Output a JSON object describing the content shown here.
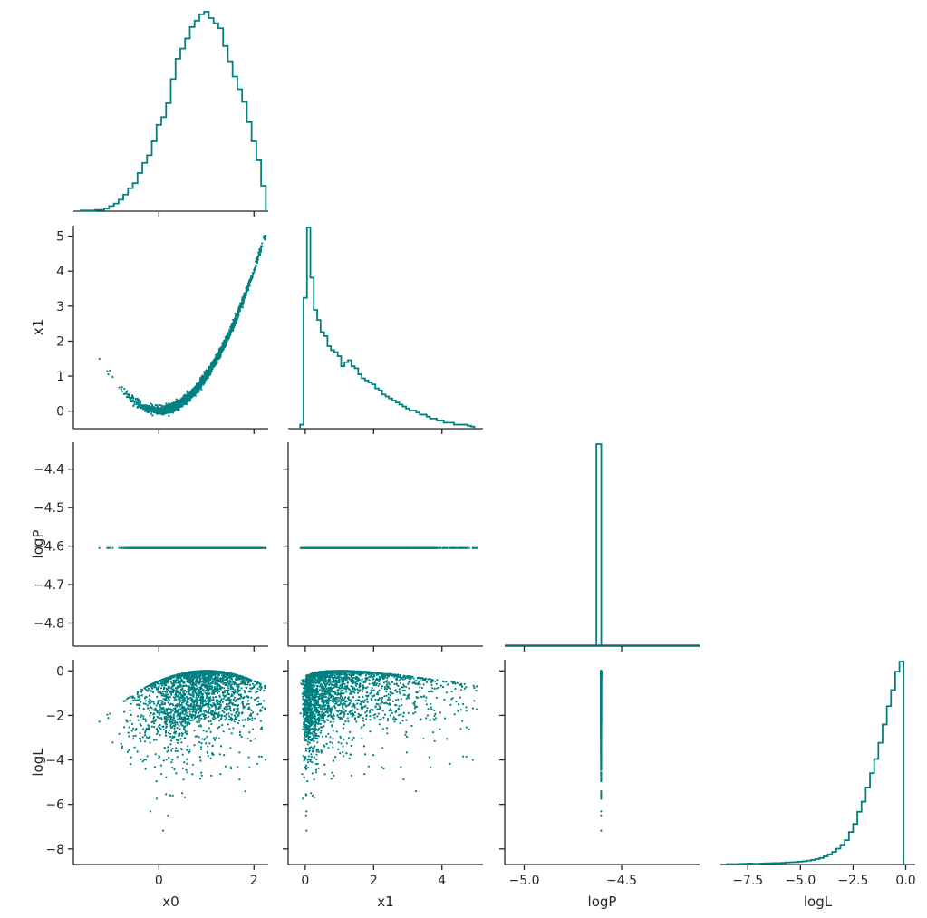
{
  "chart_data": {
    "type": "corner-plot",
    "color": "#008080",
    "variables": [
      "x0",
      "x1",
      "logP",
      "logL"
    ],
    "panels": [
      {
        "type": "histogram-step",
        "row": 0,
        "col": 0,
        "x_var": "x0",
        "xlim": [
          -1.8,
          2.3
        ],
        "x_ticks": [
          0,
          2
        ],
        "x_tick_labels": [],
        "bins": [
          [
            -1.6,
            0.005
          ],
          [
            -1.5,
            0.005
          ],
          [
            -1.4,
            0.005
          ],
          [
            -1.3,
            0.01
          ],
          [
            -1.2,
            0.01
          ],
          [
            -1.1,
            0.02
          ],
          [
            -1.0,
            0.04
          ],
          [
            -0.9,
            0.06
          ],
          [
            -0.8,
            0.09
          ],
          [
            -0.7,
            0.13
          ],
          [
            -0.6,
            0.18
          ],
          [
            -0.5,
            0.22
          ],
          [
            -0.4,
            0.3
          ],
          [
            -0.3,
            0.38
          ],
          [
            -0.2,
            0.44
          ],
          [
            -0.1,
            0.55
          ],
          [
            0.0,
            0.68
          ],
          [
            0.1,
            0.74
          ],
          [
            0.2,
            0.85
          ],
          [
            0.3,
            1.04
          ],
          [
            0.4,
            1.2
          ],
          [
            0.5,
            1.28
          ],
          [
            0.6,
            1.36
          ],
          [
            0.7,
            1.45
          ],
          [
            0.8,
            1.5
          ],
          [
            0.9,
            1.55
          ],
          [
            1.0,
            1.57
          ],
          [
            1.1,
            1.52
          ],
          [
            1.2,
            1.48
          ],
          [
            1.3,
            1.44
          ],
          [
            1.4,
            1.3
          ],
          [
            1.5,
            1.18
          ],
          [
            1.6,
            1.06
          ],
          [
            1.7,
            0.96
          ],
          [
            1.8,
            0.86
          ],
          [
            1.9,
            0.7
          ],
          [
            2.0,
            0.55
          ],
          [
            2.1,
            0.4
          ],
          [
            2.2,
            0.2
          ]
        ]
      },
      {
        "type": "scatter",
        "row": 1,
        "col": 0,
        "x_var": "x0",
        "y_var": "x1",
        "xlim": [
          -1.8,
          2.3
        ],
        "ylim": [
          -0.5,
          5.3
        ],
        "y_ticks": [
          0,
          1,
          2,
          3,
          4,
          5
        ],
        "y_tick_labels": [
          "0",
          "1",
          "2",
          "3",
          "4",
          "5"
        ],
        "x_ticks": [
          0,
          2
        ],
        "x_tick_labels": [],
        "ylabel": "x1",
        "relation": "x1 = x0^2 + noise",
        "x_range": [
          -1.55,
          2.25
        ]
      },
      {
        "type": "histogram-step",
        "row": 1,
        "col": 1,
        "x_var": "x1",
        "xlim": [
          -0.5,
          5.2
        ],
        "x_ticks": [
          0,
          2,
          4
        ],
        "x_tick_labels": [],
        "bins": [
          [
            -0.1,
            0.02
          ],
          [
            0.0,
            0.65
          ],
          [
            0.1,
            1.0
          ],
          [
            0.2,
            0.75
          ],
          [
            0.3,
            0.59
          ],
          [
            0.4,
            0.54
          ],
          [
            0.5,
            0.48
          ],
          [
            0.6,
            0.46
          ],
          [
            0.7,
            0.41
          ],
          [
            0.8,
            0.39
          ],
          [
            0.9,
            0.38
          ],
          [
            1.0,
            0.36
          ],
          [
            1.1,
            0.31
          ],
          [
            1.2,
            0.33
          ],
          [
            1.3,
            0.34
          ],
          [
            1.4,
            0.31
          ],
          [
            1.5,
            0.3
          ],
          [
            1.6,
            0.27
          ],
          [
            1.7,
            0.25
          ],
          [
            1.8,
            0.24
          ],
          [
            1.9,
            0.23
          ],
          [
            2.0,
            0.22
          ],
          [
            2.1,
            0.2
          ],
          [
            2.2,
            0.19
          ],
          [
            2.3,
            0.17
          ],
          [
            2.4,
            0.16
          ],
          [
            2.5,
            0.15
          ],
          [
            2.6,
            0.14
          ],
          [
            2.7,
            0.13
          ],
          [
            2.8,
            0.12
          ],
          [
            2.9,
            0.11
          ],
          [
            3.0,
            0.1
          ],
          [
            3.1,
            0.09
          ],
          [
            3.2,
            0.09
          ],
          [
            3.3,
            0.08
          ],
          [
            3.4,
            0.07
          ],
          [
            3.5,
            0.07
          ],
          [
            3.6,
            0.06
          ],
          [
            3.7,
            0.05
          ],
          [
            3.8,
            0.05
          ],
          [
            3.9,
            0.04
          ],
          [
            4.0,
            0.04
          ],
          [
            4.1,
            0.03
          ],
          [
            4.2,
            0.03
          ],
          [
            4.3,
            0.03
          ],
          [
            4.4,
            0.02
          ],
          [
            4.5,
            0.02
          ],
          [
            4.6,
            0.02
          ],
          [
            4.7,
            0.02
          ],
          [
            4.8,
            0.015
          ],
          [
            4.9,
            0.01
          ]
        ]
      },
      {
        "type": "scatter",
        "row": 2,
        "col": 0,
        "x_var": "x0",
        "y_var": "logP",
        "xlim": [
          -1.8,
          2.3
        ],
        "ylim": [
          -4.86,
          -4.33
        ],
        "y_ticks": [
          -4.4,
          -4.5,
          -4.6,
          -4.7,
          -4.8
        ],
        "y_tick_labels": [
          "−4.4",
          "−4.5",
          "−4.6",
          "−4.7",
          "−4.8"
        ],
        "x_ticks": [
          0,
          2
        ],
        "x_tick_labels": [],
        "ylabel": "logP",
        "constant_y": -4.605,
        "x_range": [
          -1.6,
          2.25
        ]
      },
      {
        "type": "scatter",
        "row": 2,
        "col": 1,
        "x_var": "x1",
        "y_var": "logP",
        "xlim": [
          -0.5,
          5.2
        ],
        "ylim": [
          -4.86,
          -4.33
        ],
        "y_ticks": [
          -4.4,
          -4.5,
          -4.6,
          -4.7,
          -4.8
        ],
        "y_tick_labels": [],
        "x_ticks": [
          0,
          2,
          4
        ],
        "x_tick_labels": [],
        "constant_y": -4.605,
        "x_range": [
          -0.3,
          4.95
        ]
      },
      {
        "type": "histogram-step",
        "row": 2,
        "col": 2,
        "x_var": "logP",
        "xlim": [
          -5.1,
          -4.1
        ],
        "x_ticks": [
          -5.0,
          -4.5
        ],
        "x_tick_labels": [],
        "bins": [
          [
            -4.617,
            1.0
          ]
        ],
        "bin_width": 0.025
      },
      {
        "type": "scatter",
        "row": 3,
        "col": 0,
        "x_var": "x0",
        "y_var": "logL",
        "xlim": [
          -1.8,
          2.3
        ],
        "ylim": [
          -8.7,
          0.5
        ],
        "y_ticks": [
          0,
          -2,
          -4,
          -6,
          -8
        ],
        "y_tick_labels": [
          "0",
          "−2",
          "−4",
          "−6",
          "−8"
        ],
        "x_ticks": [
          0,
          2
        ],
        "x_tick_labels": [
          "0",
          "2"
        ],
        "ylabel": "logL",
        "xlabel": "x0",
        "ymax_curve_peak_x": 1.0,
        "x_range": [
          -1.6,
          2.25
        ]
      },
      {
        "type": "scatter",
        "row": 3,
        "col": 1,
        "x_var": "x1",
        "y_var": "logL",
        "xlim": [
          -0.5,
          5.2
        ],
        "ylim": [
          -8.7,
          0.5
        ],
        "y_ticks": [
          0,
          -2,
          -4,
          -6,
          -8
        ],
        "y_tick_labels": [],
        "x_ticks": [
          0,
          2,
          4
        ],
        "x_tick_labels": [
          "0",
          "2",
          "4"
        ],
        "xlabel": "x1",
        "x_range": [
          -0.3,
          4.95
        ]
      },
      {
        "type": "scatter",
        "row": 3,
        "col": 2,
        "x_var": "logP",
        "y_var": "logL",
        "xlim": [
          -5.1,
          -4.1
        ],
        "ylim": [
          -8.7,
          0.5
        ],
        "y_ticks": [
          0,
          -2,
          -4,
          -6,
          -8
        ],
        "y_tick_labels": [],
        "x_ticks": [
          -5.0,
          -4.5
        ],
        "x_tick_labels": [
          "−5.0",
          "−4.5"
        ],
        "xlabel": "logP",
        "constant_x": -4.605,
        "y_range": [
          -8.4,
          0.0
        ]
      },
      {
        "type": "histogram-step",
        "row": 3,
        "col": 3,
        "x_var": "logL",
        "xlim": [
          -8.8,
          0.45
        ],
        "x_ticks": [
          -7.5,
          -5.0,
          -2.5,
          0.0
        ],
        "x_tick_labels": [
          "−7.5",
          "−5.0",
          "−2.5",
          "0.0"
        ],
        "xlabel": "logL",
        "bins": [
          [
            -8.4,
            0.002
          ],
          [
            -8.2,
            0.002
          ],
          [
            -8.0,
            0.002
          ],
          [
            -7.8,
            0.003
          ],
          [
            -7.6,
            0.004
          ],
          [
            -7.4,
            0.005
          ],
          [
            -7.2,
            0.004
          ],
          [
            -7.0,
            0.004
          ],
          [
            -6.8,
            0.005
          ],
          [
            -6.6,
            0.006
          ],
          [
            -6.4,
            0.006
          ],
          [
            -6.2,
            0.007
          ],
          [
            -6.0,
            0.007
          ],
          [
            -5.8,
            0.008
          ],
          [
            -5.6,
            0.01
          ],
          [
            -5.4,
            0.011
          ],
          [
            -5.2,
            0.012
          ],
          [
            -5.0,
            0.014
          ],
          [
            -4.8,
            0.016
          ],
          [
            -4.6,
            0.019
          ],
          [
            -4.4,
            0.022
          ],
          [
            -4.2,
            0.027
          ],
          [
            -4.0,
            0.032
          ],
          [
            -3.8,
            0.04
          ],
          [
            -3.6,
            0.05
          ],
          [
            -3.4,
            0.062
          ],
          [
            -3.2,
            0.078
          ],
          [
            -3.0,
            0.097
          ],
          [
            -2.8,
            0.12
          ],
          [
            -2.6,
            0.16
          ],
          [
            -2.4,
            0.2
          ],
          [
            -2.2,
            0.26
          ],
          [
            -2.0,
            0.31
          ],
          [
            -1.8,
            0.38
          ],
          [
            -1.6,
            0.45
          ],
          [
            -1.4,
            0.52
          ],
          [
            -1.2,
            0.6
          ],
          [
            -1.0,
            0.69
          ],
          [
            -0.8,
            0.78
          ],
          [
            -0.6,
            0.86
          ],
          [
            -0.4,
            0.95
          ],
          [
            -0.2,
            1.0
          ]
        ]
      }
    ]
  }
}
